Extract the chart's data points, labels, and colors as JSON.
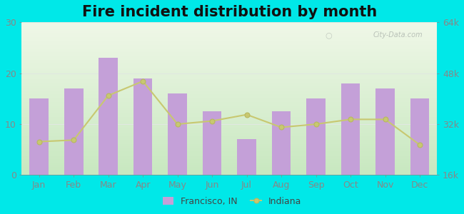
{
  "title": "Fire incident distribution by month",
  "months": [
    "Jan",
    "Feb",
    "Mar",
    "Apr",
    "May",
    "Jun",
    "Jul",
    "Aug",
    "Sep",
    "Oct",
    "Nov",
    "Dec"
  ],
  "francisco_values": [
    15,
    17,
    23,
    19,
    16,
    12.5,
    7,
    12.5,
    15,
    18,
    17,
    15
  ],
  "indiana_values": [
    26500,
    27000,
    41000,
    45500,
    32000,
    33000,
    35000,
    31000,
    32000,
    33500,
    33500,
    25500
  ],
  "bar_color": "#c4a0d8",
  "bar_edge_color": "#b890cc",
  "line_color": "#c8c870",
  "line_marker_color": "#b8b860",
  "background_color": "#00e8e8",
  "plot_bg_grad_top": "#f0f8e8",
  "plot_bg_grad_bottom": "#c8e8c0",
  "left_ylim": [
    0,
    30
  ],
  "left_yticks": [
    0,
    10,
    20,
    30
  ],
  "right_ylim": [
    16000,
    64000
  ],
  "right_yticks": [
    16000,
    32000,
    48000,
    64000
  ],
  "right_yticklabels": [
    "16k",
    "32k",
    "48k",
    "64k"
  ],
  "watermark": "City-Data.com",
  "legend_francisco": "Francisco, IN",
  "legend_indiana": "Indiana",
  "title_fontsize": 15,
  "tick_fontsize": 9,
  "axis_color": "#888888",
  "grid_color": "#e0e8e0"
}
